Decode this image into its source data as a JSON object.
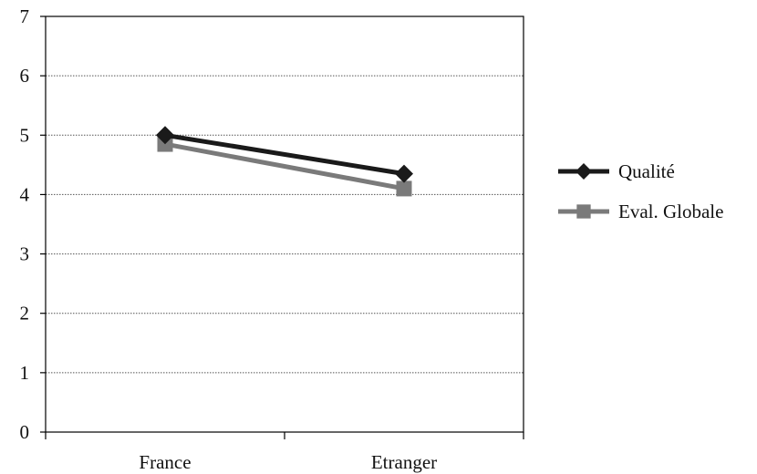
{
  "chart_data": {
    "type": "line",
    "title": "",
    "xlabel": "",
    "ylabel": "",
    "categories": [
      "France",
      "Etranger"
    ],
    "ylim": [
      0,
      7
    ],
    "yticks": [
      "0",
      "1",
      "2",
      "3",
      "4",
      "5",
      "6",
      "7"
    ],
    "grid": true,
    "legend_position": "right",
    "series": [
      {
        "name": "Qualité",
        "values": [
          5.0,
          4.35
        ],
        "color": "#1a1a1a",
        "marker": "diamond"
      },
      {
        "name": "Eval. Globale",
        "values": [
          4.85,
          4.1
        ],
        "color": "#7a7a7a",
        "marker": "square"
      }
    ]
  }
}
